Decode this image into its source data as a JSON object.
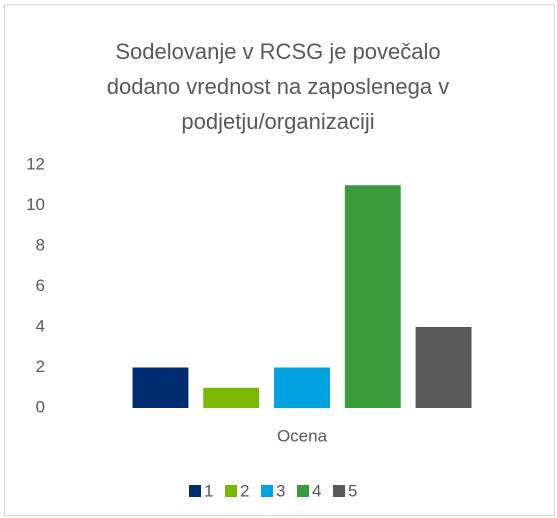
{
  "chart_data": {
    "type": "bar",
    "title": "Sodelovanje v RCSG je povečalo dodano vrednost na zaposlenega v podjetju/organizaciji",
    "categories": [
      "Ocena"
    ],
    "series": [
      {
        "name": "1",
        "color": "#002d72",
        "values": [
          2
        ]
      },
      {
        "name": "2",
        "color": "#7ab800",
        "values": [
          1
        ]
      },
      {
        "name": "3",
        "color": "#00a3e0",
        "values": [
          2
        ]
      },
      {
        "name": "4",
        "color": "#3a9b3a",
        "values": [
          11
        ]
      },
      {
        "name": "5",
        "color": "#595959",
        "values": [
          4
        ]
      }
    ],
    "ylim": [
      0,
      12
    ],
    "yticks": [
      0,
      2,
      4,
      6,
      8,
      10,
      12
    ],
    "grid": false,
    "legend": "bottom"
  }
}
